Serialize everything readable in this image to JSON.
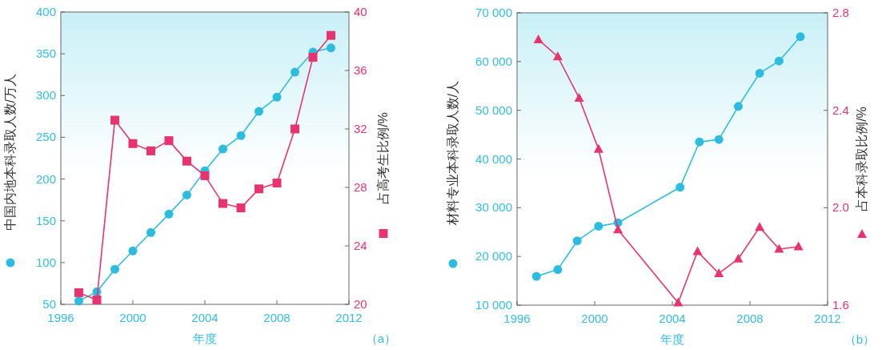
{
  "chart_data": [
    {
      "type": "line",
      "xlabel": "年度",
      "ylabel": "中国内地本科录取人数/万人",
      "y2label": "占高考生比例/%",
      "annotations": [
        "（a）"
      ],
      "xlim": [
        1996,
        2012
      ],
      "xticks": [
        1996,
        2000,
        2004,
        2008,
        2012
      ],
      "ylim": [
        50,
        400
      ],
      "yticks": [
        50,
        100,
        150,
        200,
        250,
        300,
        350,
        400
      ],
      "y2lim": [
        20,
        40
      ],
      "y2ticks": [
        20,
        24,
        28,
        32,
        36,
        40
      ],
      "series": [
        {
          "axis": "y",
          "marker": "circle",
          "color": "#2cbce0",
          "x": [
            1997,
            1998,
            1999,
            2000,
            2001,
            2002,
            2003,
            2004,
            2005,
            2006,
            2007,
            2008,
            2009,
            2010,
            2011
          ],
          "values": [
            54,
            65,
            92,
            114,
            136,
            158,
            181,
            210,
            236,
            252,
            281,
            298,
            328,
            352,
            357
          ]
        },
        {
          "axis": "y2",
          "marker": "square",
          "color": "#e8336e",
          "x": [
            1997,
            1998,
            1999,
            2000,
            2001,
            2002,
            2003,
            2004,
            2005,
            2006,
            2007,
            2008,
            2009,
            2010,
            2011
          ],
          "values": [
            20.8,
            20.3,
            32.6,
            31.0,
            30.5,
            31.2,
            29.8,
            28.8,
            26.9,
            26.6,
            27.9,
            28.3,
            32.0,
            36.9,
            38.4
          ]
        }
      ]
    },
    {
      "type": "line",
      "xlabel": "年度",
      "ylabel": "材料专业本科录取人数/人",
      "y2label": "占本科录取比例/%",
      "annotations": [
        "（b）"
      ],
      "xlim": [
        1996,
        2012
      ],
      "xticks": [
        1996,
        2000,
        2004,
        2008,
        2012
      ],
      "ylim": [
        10000,
        70000
      ],
      "yticks": [
        {
          "value": 10000,
          "label": "10 000"
        },
        {
          "value": 20000,
          "label": "20 000"
        },
        {
          "value": 30000,
          "label": "30 000"
        },
        {
          "value": 40000,
          "label": "40 000"
        },
        {
          "value": 50000,
          "label": "50 000"
        },
        {
          "value": 60000,
          "label": "60 000"
        },
        {
          "value": 70000,
          "label": "70 000"
        }
      ],
      "y2lim": [
        1.6,
        2.8
      ],
      "y2ticks": [
        {
          "value": 1.6,
          "label": "1.6"
        },
        {
          "value": 2.0,
          "label": "2.0"
        },
        {
          "value": 2.4,
          "label": "2.4"
        },
        {
          "value": 2.8,
          "label": "2.8"
        }
      ],
      "series": [
        {
          "axis": "y",
          "marker": "circle",
          "color": "#2cbce0",
          "x": [
            1997,
            1998.1,
            1999.1,
            2000.2,
            2001.2,
            2004.4,
            2005.4,
            2006.4,
            2007.4,
            2008.5,
            2009.5,
            2010.6
          ],
          "values": [
            15900,
            17300,
            23200,
            26200,
            26900,
            34200,
            43500,
            44000,
            50800,
            57600,
            60100,
            65100
          ]
        },
        {
          "axis": "y2",
          "marker": "triangle",
          "color": "#e8336e",
          "x": [
            1997.1,
            1998.1,
            1999.2,
            2000.2,
            2001.2,
            2004.3,
            2005.3,
            2006.4,
            2007.4,
            2008.5,
            2009.5,
            2010.5
          ],
          "values": [
            2.69,
            2.62,
            2.45,
            2.24,
            1.91,
            1.61,
            1.82,
            1.73,
            1.79,
            1.92,
            1.83,
            1.84
          ]
        }
      ]
    }
  ]
}
